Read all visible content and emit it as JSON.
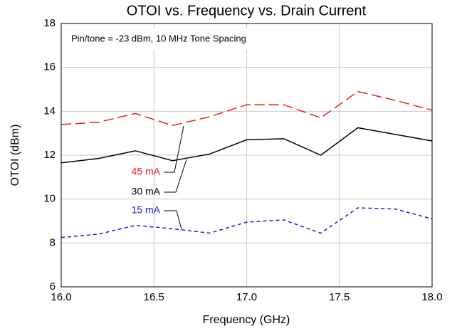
{
  "chart_data": {
    "type": "line",
    "title": "OTOI vs. Frequency vs. Drain Current",
    "annotation": "Pin/tone = -23 dBm, 10 MHz Tone Spacing",
    "x_label": "Frequency (GHz)",
    "y_label": "OTOI (dBm)",
    "x": [
      16.0,
      16.2,
      16.4,
      16.6,
      16.8,
      17.0,
      17.2,
      17.4,
      17.6,
      17.8,
      18.0
    ],
    "series": [
      {
        "name": "45 mA",
        "color": "#e8201e",
        "dash": "14,6",
        "values": [
          13.4,
          13.5,
          13.9,
          13.35,
          13.75,
          14.3,
          14.3,
          13.7,
          14.9,
          14.5,
          14.05
        ]
      },
      {
        "name": "30 mA",
        "color": "#000000",
        "dash": "none",
        "values": [
          11.65,
          11.85,
          12.2,
          11.75,
          12.05,
          12.7,
          12.75,
          12.0,
          13.25,
          12.95,
          12.65
        ]
      },
      {
        "name": "15 mA",
        "color": "#1a1ae0",
        "dash": "5,4",
        "values": [
          8.25,
          8.4,
          8.8,
          8.65,
          8.45,
          8.95,
          9.05,
          8.45,
          9.6,
          9.55,
          9.1
        ]
      }
    ],
    "xlim": [
      16.0,
      18.0
    ],
    "xticks": [
      {
        "value": 16.0,
        "label": "16.0"
      },
      {
        "value": 16.5,
        "label": "16.5"
      },
      {
        "value": 17.0,
        "label": "17.0"
      },
      {
        "value": 17.5,
        "label": "17.5"
      },
      {
        "value": 18.0,
        "label": "18.0"
      }
    ],
    "ylim": [
      6,
      18
    ],
    "yticks": [
      6,
      8,
      10,
      12,
      14,
      16,
      18
    ],
    "grid": true
  }
}
